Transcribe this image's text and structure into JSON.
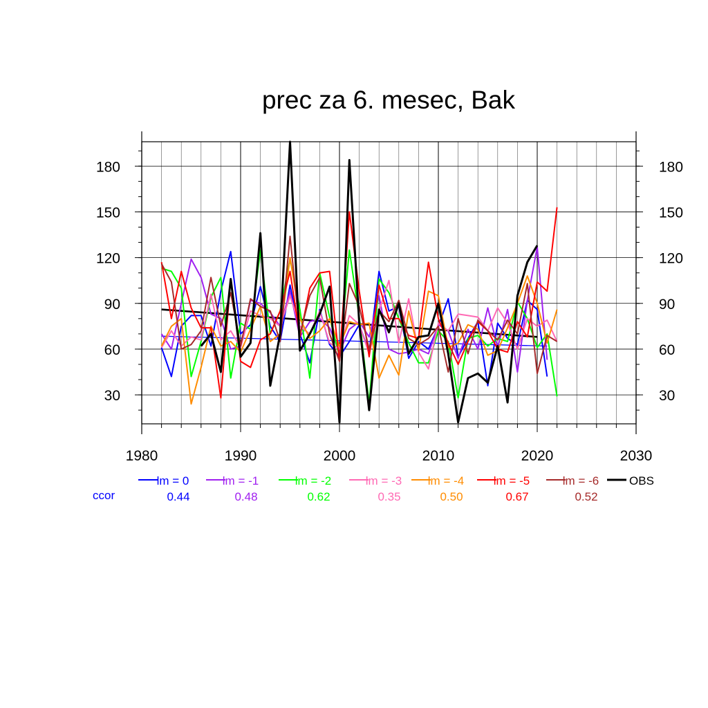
{
  "chart_data": {
    "type": "line",
    "title": "prec za 6. mesec, Bak",
    "xlabel": "",
    "ylabel": "",
    "xlim": [
      1980,
      2030
    ],
    "ylim": [
      11,
      196
    ],
    "x_ticks": [
      1980,
      1990,
      2000,
      2010,
      2020,
      2030
    ],
    "y_ticks": [
      30,
      60,
      90,
      120,
      150,
      180
    ],
    "grid": true,
    "legend_position": "bottom",
    "ccor_label": "ccor",
    "series": [
      {
        "name": "lm = 0",
        "color": "#0000ff",
        "ccor": "0.44",
        "x": [
          1982,
          1983,
          1984,
          1985,
          1986,
          1987,
          1988,
          1989,
          1990,
          1991,
          1992,
          1993,
          1994,
          1995,
          1996,
          1997,
          1998,
          1999,
          2000,
          2001,
          2002,
          2003,
          2004,
          2005,
          2006,
          2007,
          2008,
          2009,
          2010,
          2011,
          2012,
          2013,
          2014,
          2015,
          2016,
          2017,
          2018,
          2019,
          2020,
          2021
        ],
        "values": [
          61,
          42,
          75,
          82,
          82,
          62,
          98,
          124,
          70,
          76,
          101,
          75,
          65,
          102,
          70,
          51,
          86,
          63,
          55,
          65,
          76,
          58,
          111,
          85,
          88,
          54,
          65,
          60,
          75,
          93,
          55,
          67,
          78,
          36,
          77,
          67,
          63,
          92,
          86,
          42
        ]
      },
      {
        "name": "lm = -1",
        "color": "#a020f0",
        "ccor": "0.48",
        "x": [
          1982,
          1983,
          1984,
          1985,
          1986,
          1987,
          1988,
          1989,
          1990,
          1991,
          1992,
          1993,
          1994,
          1995,
          1996,
          1997,
          1998,
          1999,
          2000,
          2001,
          2002,
          2003,
          2004,
          2005,
          2006,
          2007,
          2008,
          2009,
          2010,
          2011,
          2012,
          2013,
          2014,
          2015,
          2016,
          2017,
          2018,
          2019,
          2020,
          2021
        ],
        "values": [
          70,
          60,
          90,
          119,
          107,
          83,
          80,
          60,
          62,
          92,
          90,
          84,
          75,
          98,
          68,
          78,
          80,
          74,
          58,
          73,
          78,
          68,
          95,
          60,
          57,
          58,
          60,
          57,
          76,
          72,
          54,
          73,
          60,
          87,
          61,
          86,
          45,
          92,
          127,
          53
        ]
      },
      {
        "name": "lm = -2",
        "color": "#00ff00",
        "ccor": "0.62",
        "x": [
          1982,
          1983,
          1984,
          1985,
          1986,
          1987,
          1988,
          1989,
          1990,
          1991,
          1992,
          1993,
          1994,
          1995,
          1996,
          1997,
          1998,
          1999,
          2000,
          2001,
          2002,
          2003,
          2004,
          2005,
          2006,
          2007,
          2008,
          2009,
          2010,
          2011,
          2012,
          2013,
          2014,
          2015,
          2016,
          2017,
          2018,
          2019,
          2020,
          2021,
          2022
        ],
        "values": [
          113,
          111,
          100,
          42,
          65,
          94,
          107,
          41,
          77,
          73,
          125,
          70,
          85,
          119,
          86,
          41,
          110,
          81,
          55,
          125,
          81,
          24,
          106,
          97,
          80,
          64,
          51,
          51,
          72,
          65,
          28,
          67,
          69,
          62,
          67,
          65,
          91,
          80,
          61,
          70,
          29
        ]
      },
      {
        "name": "lm = -3",
        "color": "#ff69b4",
        "ccor": "0.35",
        "x": [
          1982,
          1983,
          1984,
          1985,
          1986,
          1987,
          1988,
          1989,
          1990,
          1991,
          1992,
          1993,
          1994,
          1995,
          1996,
          1997,
          1998,
          1999,
          2000,
          2001,
          2002,
          2003,
          2004,
          2005,
          2006,
          2007,
          2008,
          2009,
          2010,
          2011,
          2012,
          2013,
          2014,
          2015,
          2016,
          2017,
          2018,
          2019,
          2020,
          2021,
          2022
        ],
        "values": [
          61,
          72,
          62,
          68,
          66,
          96,
          66,
          72,
          61,
          85,
          82,
          80,
          75,
          95,
          75,
          70,
          85,
          64,
          60,
          82,
          76,
          57,
          85,
          105,
          64,
          93,
          58,
          47,
          77,
          72,
          83,
          82,
          81,
          72,
          87,
          77,
          60,
          80,
          75,
          79,
          65
        ]
      },
      {
        "name": "lm = -4",
        "color": "#ff8c00",
        "ccor": "0.50",
        "x": [
          1982,
          1983,
          1984,
          1985,
          1986,
          1987,
          1988,
          1989,
          1990,
          1991,
          1992,
          1993,
          1994,
          1995,
          1996,
          1997,
          1998,
          1999,
          2000,
          2001,
          2002,
          2003,
          2004,
          2005,
          2006,
          2007,
          2008,
          2009,
          2010,
          2011,
          2012,
          2013,
          2014,
          2015,
          2016,
          2017,
          2018,
          2019,
          2020,
          2021,
          2022
        ],
        "values": [
          62,
          75,
          80,
          24,
          48,
          75,
          62,
          65,
          58,
          73,
          88,
          65,
          70,
          120,
          80,
          67,
          72,
          80,
          62,
          78,
          76,
          77,
          41,
          56,
          43,
          85,
          59,
          98,
          95,
          61,
          64,
          76,
          73,
          56,
          59,
          74,
          90,
          108,
          90,
          64,
          86
        ]
      },
      {
        "name": "lm = -5",
        "color": "#ff0000",
        "ccor": "0.67",
        "x": [
          1982,
          1983,
          1984,
          1985,
          1986,
          1987,
          1988,
          1989,
          1990,
          1991,
          1992,
          1993,
          1994,
          1995,
          1996,
          1997,
          1998,
          1999,
          2000,
          2001,
          2002,
          2003,
          2004,
          2005,
          2006,
          2007,
          2008,
          2009,
          2010,
          2011,
          2012,
          2013,
          2014,
          2015,
          2016,
          2017,
          2018,
          2019,
          2020,
          2021,
          2022
        ],
        "values": [
          117,
          80,
          111,
          87,
          74,
          74,
          28,
          106,
          52,
          48,
          66,
          70,
          85,
          111,
          68,
          100,
          110,
          111,
          52,
          150,
          98,
          55,
          102,
          80,
          80,
          69,
          67,
          117,
          80,
          64,
          50,
          65,
          78,
          72,
          60,
          58,
          78,
          68,
          104,
          98,
          153
        ]
      },
      {
        "name": "lm = -6",
        "color": "#a52a2a",
        "ccor": "0.52",
        "x": [
          1982,
          1983,
          1984,
          1985,
          1986,
          1987,
          1988,
          1989,
          1990,
          1991,
          1992,
          1993,
          1994,
          1995,
          1996,
          1997,
          1998,
          1999,
          2000,
          2001,
          2002,
          2003,
          2004,
          2005,
          2006,
          2007,
          2008,
          2009,
          2010,
          2011,
          2012,
          2013,
          2014,
          2015,
          2016,
          2017,
          2018,
          2019,
          2020,
          2021,
          2022
        ],
        "values": [
          116,
          104,
          60,
          63,
          72,
          107,
          75,
          97,
          62,
          93,
          88,
          85,
          65,
          134,
          70,
          95,
          107,
          70,
          52,
          103,
          88,
          60,
          85,
          78,
          92,
          67,
          63,
          67,
          75,
          45,
          80,
          57,
          79,
          72,
          66,
          79,
          70,
          103,
          44,
          69,
          65
        ]
      },
      {
        "name": "OBS",
        "color": "#000000",
        "ccor": "",
        "x": [
          1986,
          1987,
          1988,
          1989,
          1990,
          1991,
          1992,
          1993,
          1994,
          1995,
          1996,
          1997,
          1998,
          1999,
          2000,
          2001,
          2002,
          2003,
          2004,
          2005,
          2006,
          2007,
          2008,
          2009,
          2010,
          2011,
          2012,
          2013,
          2014,
          2015,
          2016,
          2017,
          2018,
          2019,
          2020
        ],
        "values": [
          62,
          70,
          45,
          106,
          55,
          64,
          136,
          36,
          70,
          196,
          59,
          70,
          83,
          101,
          12,
          184,
          77,
          20,
          86,
          71,
          90,
          57,
          68,
          69,
          90,
          57,
          12,
          41,
          44,
          38,
          62,
          25,
          95,
          117,
          128
        ]
      }
    ],
    "trend_lines": [
      {
        "name": "lm = 0",
        "color": "#0000ff",
        "x": [
          1982,
          2021
        ],
        "values": [
          68.5,
          62
        ]
      },
      {
        "name": "OBS",
        "color": "#000000",
        "x": [
          1982,
          2020
        ],
        "values": [
          86,
          68
        ]
      }
    ]
  }
}
